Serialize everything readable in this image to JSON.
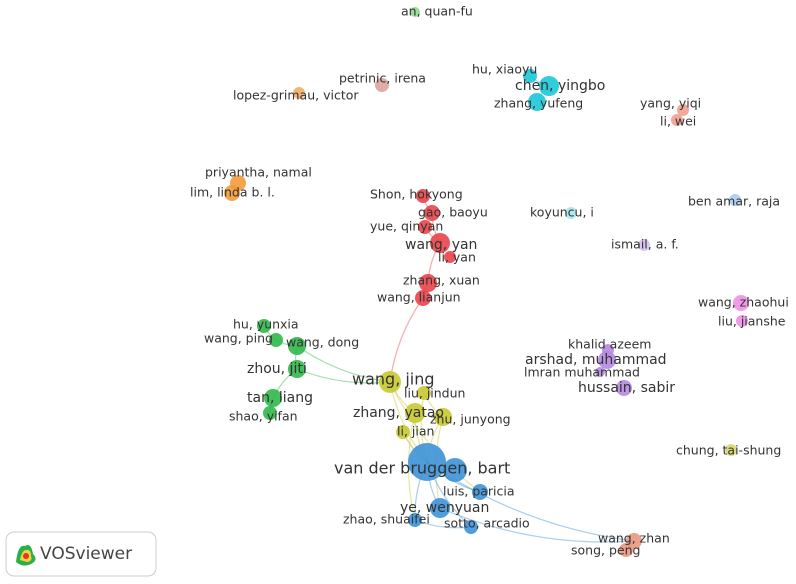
{
  "nodes": [
    {
      "label": "an, quan-fu",
      "color": "#8fd88f"
    },
    {
      "label": "petrinic, irena",
      "color": "#dca49c"
    },
    {
      "label": "lopez-grimau, victor",
      "color": "#f3ad6a"
    },
    {
      "label": "hu, xiaoyu",
      "color": "#1cc6d8"
    },
    {
      "label": "chen, yingbo",
      "color": "#1cc6d8"
    },
    {
      "label": "zhang, yufeng",
      "color": "#1cc6d8"
    },
    {
      "label": "yang, yiqi",
      "color": "#f0a090"
    },
    {
      "label": "li, wei",
      "color": "#f0a090"
    },
    {
      "label": "priyantha, namal",
      "color": "#f39a3a"
    },
    {
      "label": "lim, linda b. l.",
      "color": "#f39a3a"
    },
    {
      "label": "Shon, hokyong",
      "color": "#e8444a"
    },
    {
      "label": "gao, baoyu",
      "color": "#e8444a"
    },
    {
      "label": "yue, qinyan",
      "color": "#e8444a"
    },
    {
      "label": "wang, yan",
      "color": "#e8444a"
    },
    {
      "label": "li, yan",
      "color": "#e8444a"
    },
    {
      "label": "koyuncu, i",
      "color": "#a8e6ee"
    },
    {
      "label": "ben amar, raja",
      "color": "#a8cdf0"
    },
    {
      "label": "ismail, a. f.",
      "color": "#d6c0ee"
    },
    {
      "label": "zhang, xuan",
      "color": "#e8444a"
    },
    {
      "label": "wang, lianjun",
      "color": "#e8444a"
    },
    {
      "label": "wang, zhaohui",
      "color": "#ee90e6"
    },
    {
      "label": "liu, jianshe",
      "color": "#ee90e6"
    },
    {
      "label": "khalid azeem",
      "color": "#b48ae0"
    },
    {
      "label": "arshad, muhammad",
      "color": "#b48ae0"
    },
    {
      "label": "lmran muhammad",
      "color": "#b48ae0"
    },
    {
      "label": "hussain, sabir",
      "color": "#b48ae0"
    },
    {
      "label": "hu, yunxia",
      "color": "#2fb84a"
    },
    {
      "label": "wang, ping",
      "color": "#2fb84a"
    },
    {
      "label": "wang, dong",
      "color": "#2fb84a"
    },
    {
      "label": "zhou, jiti",
      "color": "#2fb84a"
    },
    {
      "label": "tan, liang",
      "color": "#2fb84a"
    },
    {
      "label": "shao, yifan",
      "color": "#2fb84a"
    },
    {
      "label": "wang, jing",
      "color": "#c8c832"
    },
    {
      "label": "liu, jindun",
      "color": "#c8c832"
    },
    {
      "label": "zhang, yatao",
      "color": "#c8c832"
    },
    {
      "label": "zhu, junyong",
      "color": "#c8c832"
    },
    {
      "label": "li, jian",
      "color": "#c8c832"
    },
    {
      "label": "chung, tai-shung",
      "color": "#d8d870"
    },
    {
      "label": "van der bruggen, bart",
      "color": "#3d92d8"
    },
    {
      "label": "luis, paricia",
      "color": "#3d92d8"
    },
    {
      "label": "ye, wenyuan",
      "color": "#3d92d8"
    },
    {
      "label": "zhao, shuaifei",
      "color": "#3d92d8"
    },
    {
      "label": "sotto, arcadio",
      "color": "#3d92d8"
    },
    {
      "label": "wang, zhan",
      "color": "#e89880"
    },
    {
      "label": "song, peng",
      "color": "#e89880"
    }
  ],
  "logo": {
    "text": "VOSviewer"
  }
}
